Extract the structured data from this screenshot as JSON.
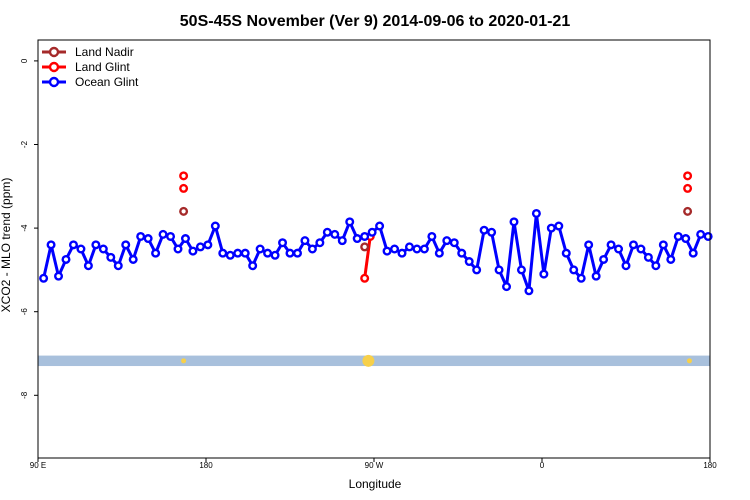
{
  "chart_data": {
    "type": "line",
    "title": "50S-45S November (Ver 9)   2014-09-06 to 2020-01-21",
    "xlabel": "Longitude",
    "ylabel": "XCO2 - MLO trend (ppm)",
    "xlim": [
      90,
      450
    ],
    "ylim": [
      0.5,
      -9.5
    ],
    "x_ticks": [
      {
        "value": 90,
        "label": "90 E"
      },
      {
        "value": 180,
        "label": "180"
      },
      {
        "value": 270,
        "label": "90 W"
      },
      {
        "value": 360,
        "label": "0"
      },
      {
        "value": 450,
        "label": "180"
      }
    ],
    "y_ticks": [
      {
        "value": 0,
        "label": "0"
      },
      {
        "value": -2,
        "label": "-2"
      },
      {
        "value": -4,
        "label": "-4"
      },
      {
        "value": -6,
        "label": "-6"
      },
      {
        "value": -8,
        "label": "-8"
      }
    ],
    "legend_position": "top-left",
    "series": [
      {
        "name": "Land Nadir",
        "color": "#a52a2a",
        "points": [
          [
            168,
            -3.6
          ],
          [
            265,
            -4.45
          ],
          [
            438,
            -3.6
          ]
        ]
      },
      {
        "name": "Land Glint",
        "color": "#ff0000",
        "points": [
          [
            168,
            -2.75
          ],
          [
            168,
            -3.05
          ],
          [
            265,
            -5.2
          ],
          [
            268,
            -4.2
          ],
          [
            438,
            -2.75
          ],
          [
            438,
            -3.05
          ]
        ]
      },
      {
        "name": "Ocean Glint",
        "color": "#0000ff",
        "points": [
          [
            93,
            -5.2
          ],
          [
            97,
            -4.4
          ],
          [
            101,
            -5.15
          ],
          [
            105,
            -4.75
          ],
          [
            109,
            -4.4
          ],
          [
            113,
            -4.5
          ],
          [
            117,
            -4.9
          ],
          [
            121,
            -4.4
          ],
          [
            125,
            -4.5
          ],
          [
            129,
            -4.7
          ],
          [
            133,
            -4.9
          ],
          [
            137,
            -4.4
          ],
          [
            141,
            -4.75
          ],
          [
            145,
            -4.2
          ],
          [
            149,
            -4.25
          ],
          [
            153,
            -4.6
          ],
          [
            157,
            -4.15
          ],
          [
            161,
            -4.2
          ],
          [
            165,
            -4.5
          ],
          [
            169,
            -4.25
          ],
          [
            173,
            -4.55
          ],
          [
            177,
            -4.45
          ],
          [
            181,
            -4.4
          ],
          [
            185,
            -3.95
          ],
          [
            189,
            -4.6
          ],
          [
            193,
            -4.65
          ],
          [
            197,
            -4.6
          ],
          [
            201,
            -4.6
          ],
          [
            205,
            -4.9
          ],
          [
            209,
            -4.5
          ],
          [
            213,
            -4.6
          ],
          [
            217,
            -4.65
          ],
          [
            221,
            -4.35
          ],
          [
            225,
            -4.6
          ],
          [
            229,
            -4.6
          ],
          [
            233,
            -4.3
          ],
          [
            237,
            -4.5
          ],
          [
            241,
            -4.35
          ],
          [
            245,
            -4.1
          ],
          [
            249,
            -4.15
          ],
          [
            253,
            -4.3
          ],
          [
            257,
            -3.85
          ],
          [
            261,
            -4.25
          ],
          [
            265,
            -4.2
          ],
          [
            269,
            -4.1
          ],
          [
            273,
            -3.95
          ],
          [
            277,
            -4.55
          ],
          [
            281,
            -4.5
          ],
          [
            285,
            -4.6
          ],
          [
            289,
            -4.45
          ],
          [
            293,
            -4.5
          ],
          [
            297,
            -4.5
          ],
          [
            301,
            -4.2
          ],
          [
            305,
            -4.6
          ],
          [
            309,
            -4.3
          ],
          [
            313,
            -4.35
          ],
          [
            317,
            -4.6
          ],
          [
            321,
            -4.8
          ],
          [
            325,
            -5.0
          ],
          [
            329,
            -4.05
          ],
          [
            333,
            -4.1
          ],
          [
            337,
            -5.0
          ],
          [
            341,
            -5.4
          ],
          [
            345,
            -3.85
          ],
          [
            349,
            -5.0
          ],
          [
            353,
            -5.5
          ],
          [
            357,
            -3.65
          ],
          [
            361,
            -5.1
          ],
          [
            365,
            -4.0
          ],
          [
            369,
            -3.95
          ],
          [
            373,
            -4.6
          ],
          [
            377,
            -5.0
          ],
          [
            381,
            -5.2
          ],
          [
            385,
            -4.4
          ],
          [
            389,
            -5.15
          ],
          [
            393,
            -4.75
          ],
          [
            397,
            -4.4
          ],
          [
            401,
            -4.5
          ],
          [
            405,
            -4.9
          ],
          [
            409,
            -4.4
          ],
          [
            413,
            -4.5
          ],
          [
            417,
            -4.7
          ],
          [
            421,
            -4.9
          ],
          [
            425,
            -4.4
          ],
          [
            429,
            -4.75
          ],
          [
            433,
            -4.2
          ],
          [
            437,
            -4.25
          ],
          [
            441,
            -4.6
          ],
          [
            445,
            -4.15
          ],
          [
            449,
            -4.2
          ]
        ]
      }
    ],
    "land_band": {
      "y_range": [
        -7.05,
        -7.3
      ],
      "color": "#a8c0dc",
      "marker_color": "#f7d04a",
      "markers": [
        {
          "x": 168,
          "size": "small"
        },
        {
          "x": 267,
          "size": "large"
        },
        {
          "x": 439,
          "size": "small"
        }
      ]
    }
  }
}
